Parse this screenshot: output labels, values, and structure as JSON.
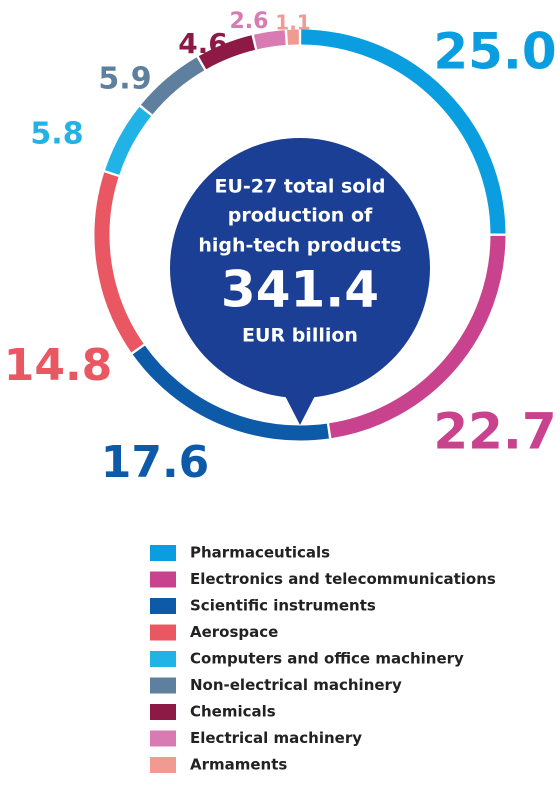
{
  "chart_data": {
    "type": "donut",
    "center_title": [
      "EU-27 total sold",
      "production of",
      "high-tech products"
    ],
    "total": 341.4,
    "total_unit": "EUR billion",
    "categories": [
      "Pharmaceuticals",
      "Electronics and telecommunications",
      "Scientific instruments",
      "Aerospace",
      "Computers and office machinery",
      "Non-electrical machinery",
      "Chemicals",
      "Electrical machinery",
      "Armaments"
    ],
    "values": [
      25.0,
      22.7,
      17.6,
      14.8,
      5.8,
      5.9,
      4.6,
      2.6,
      1.1
    ],
    "value_labels": [
      "25.0",
      "22.7",
      "17.6",
      "14.8",
      "5.8",
      "5.9",
      "4.6",
      "2.6",
      "1.1"
    ],
    "colors": [
      "#0a9ee0",
      "#c8428e",
      "#0d5ba8",
      "#e95862",
      "#22b3e6",
      "#5e7f9e",
      "#8c1a45",
      "#d87bb2",
      "#f09a92"
    ],
    "center_color": "#1b3f94"
  }
}
